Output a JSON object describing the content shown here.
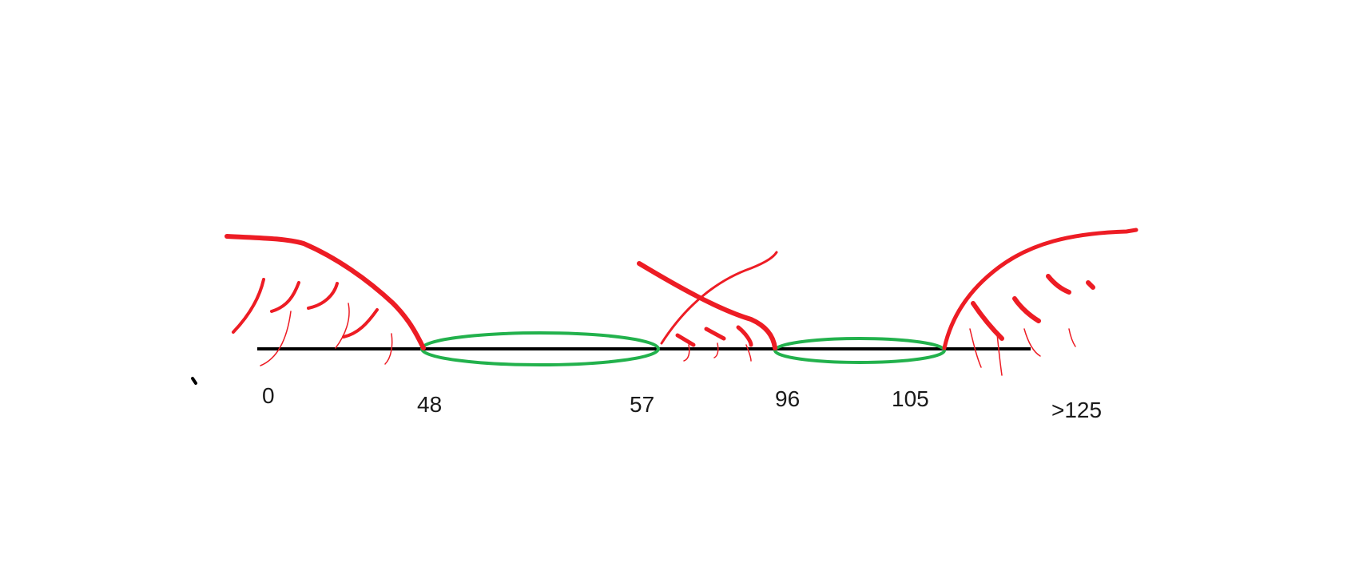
{
  "number_line": {
    "ticks": [
      {
        "label": "0"
      },
      {
        "label": "48"
      },
      {
        "label": "57"
      },
      {
        "label": "96"
      },
      {
        "label": "105"
      },
      {
        "label": ">125"
      }
    ]
  },
  "intervals": {
    "kept": [
      {
        "from": "48",
        "to": "57"
      },
      {
        "from": "96",
        "to": "105"
      }
    ],
    "excluded": [
      {
        "from": "0",
        "to": "48"
      },
      {
        "from": "57",
        "to": "96"
      },
      {
        "from": "105",
        "to": ">125"
      }
    ]
  },
  "colors": {
    "axis": "#000000",
    "kept_region": "#22b14c",
    "excluded_hatch": "#ed1c24",
    "text": "#1a1a1a"
  }
}
